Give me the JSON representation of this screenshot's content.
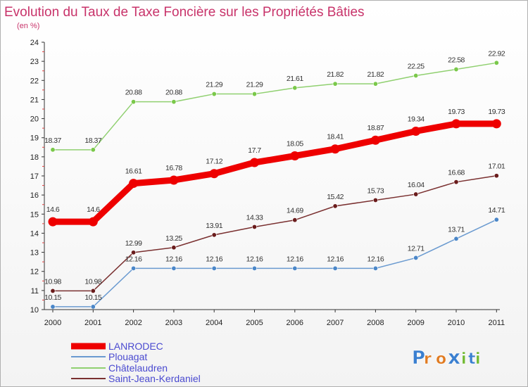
{
  "chart_data": {
    "type": "line",
    "title": "Evolution du Taux de Taxe Foncière sur les Propriétés Bâties",
    "subtitle": "(en %)",
    "categories": [
      "2000",
      "2001",
      "2002",
      "2003",
      "2004",
      "2005",
      "2006",
      "2007",
      "2008",
      "2009",
      "2010",
      "2011"
    ],
    "ylim": [
      10,
      24
    ],
    "yticks": [
      "10",
      "11",
      "12",
      "13",
      "14",
      "15",
      "16",
      "17",
      "18",
      "19",
      "20",
      "21",
      "22",
      "23",
      "24"
    ],
    "series": [
      {
        "name": "LANRODEC",
        "color": "#ee0000",
        "bold": true,
        "values": [
          14.6,
          14.6,
          16.61,
          16.78,
          17.12,
          17.7,
          18.05,
          18.41,
          18.87,
          19.34,
          19.73,
          19.73
        ],
        "labels": [
          "14.6",
          "14.6",
          "16.61",
          "16.78",
          "17.12",
          "17.7",
          "18.05",
          "18.41",
          "18.87",
          "19.34",
          "19.73",
          "19.73"
        ]
      },
      {
        "name": "Plouagat",
        "color": "#6a9ad0",
        "point": "#4a86c8",
        "bold": false,
        "values": [
          10.15,
          10.15,
          12.16,
          12.16,
          12.16,
          12.16,
          12.16,
          12.16,
          12.16,
          12.71,
          13.71,
          14.71
        ],
        "labels": [
          "10.15",
          "10.15",
          "12.16",
          "12.16",
          "12.16",
          "12.16",
          "12.16",
          "12.16",
          "12.16",
          "12.71",
          "13.71",
          "14.71"
        ]
      },
      {
        "name": "Châtelaudren",
        "color": "#90d070",
        "point": "#7ac84a",
        "bold": false,
        "values": [
          18.37,
          18.37,
          20.88,
          20.88,
          21.29,
          21.29,
          21.61,
          21.82,
          21.82,
          22.25,
          22.58,
          22.92
        ],
        "labels": [
          "18.37",
          "18.37",
          "20.88",
          "20.88",
          "21.29",
          "21.29",
          "21.61",
          "21.82",
          "21.82",
          "22.25",
          "22.58",
          "22.92"
        ]
      },
      {
        "name": "Saint-Jean-Kerdaniel",
        "color": "#7a3030",
        "point": "#6a1c1c",
        "bold": false,
        "values": [
          10.98,
          10.98,
          12.99,
          13.25,
          13.91,
          14.33,
          14.69,
          15.42,
          15.73,
          16.04,
          16.68,
          17.01
        ],
        "labels": [
          "10.98",
          "10.98",
          "12.99",
          "13.25",
          "13.91",
          "14.33",
          "14.69",
          "15.42",
          "15.73",
          "16.04",
          "16.68",
          "17.01"
        ]
      }
    ]
  },
  "logo": {
    "text": "Proxiti",
    "letters": [
      "P",
      "r",
      "o",
      "x",
      "i",
      "t",
      "i"
    ],
    "colors": [
      "#3a7fd0",
      "#e07a20",
      "#e07a20",
      "#3a7fd0",
      "#70b830",
      "#3a7fd0",
      "#70b830"
    ]
  }
}
